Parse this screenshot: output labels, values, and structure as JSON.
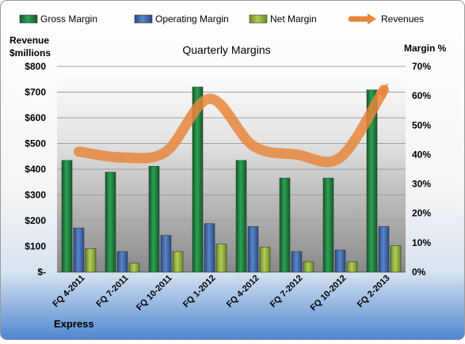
{
  "chart_data": {
    "type": "bar",
    "title": "Quarterly Margins",
    "left_axis_label_line1": "Revenue",
    "left_axis_label_line2": "$millions",
    "right_axis_label": "Margin %",
    "footer_label": "Express",
    "categories": [
      "FQ 4-2011",
      "FQ 7-2011",
      "FQ 10-2011",
      "FQ 1-2012",
      "FQ 4-2012",
      "FQ 7-2012",
      "FQ 10-2012",
      "FQ 2-2013"
    ],
    "series": [
      {
        "name": "Gross Margin",
        "values": [
          38,
          34,
          36,
          63,
          38,
          32,
          32,
          62
        ],
        "color": "#1e7a3c"
      },
      {
        "name": "Operating Margin",
        "values": [
          15,
          7,
          12.5,
          16.5,
          15.5,
          7,
          7.5,
          15.5
        ],
        "color": "#3e65a8"
      },
      {
        "name": "Net Margin",
        "values": [
          8,
          3,
          7,
          9.5,
          8.5,
          3.5,
          3.5,
          9
        ],
        "color": "#8fac3c"
      },
      {
        "name": "Revenues",
        "type": "line",
        "values": [
          41,
          39,
          41,
          59,
          43,
          40,
          39,
          62
        ],
        "color": "#e8863c"
      }
    ],
    "left_axis": {
      "ylim": [
        0,
        800
      ],
      "ticks": [
        "$-",
        "$100",
        "$200",
        "$300",
        "$400",
        "$500",
        "$600",
        "$700",
        "$800"
      ]
    },
    "right_axis": {
      "ylim": [
        0,
        70
      ],
      "ticks": [
        "0%",
        "10%",
        "20%",
        "30%",
        "40%",
        "50%",
        "60%",
        "70%"
      ]
    },
    "legend_placement": "top"
  }
}
